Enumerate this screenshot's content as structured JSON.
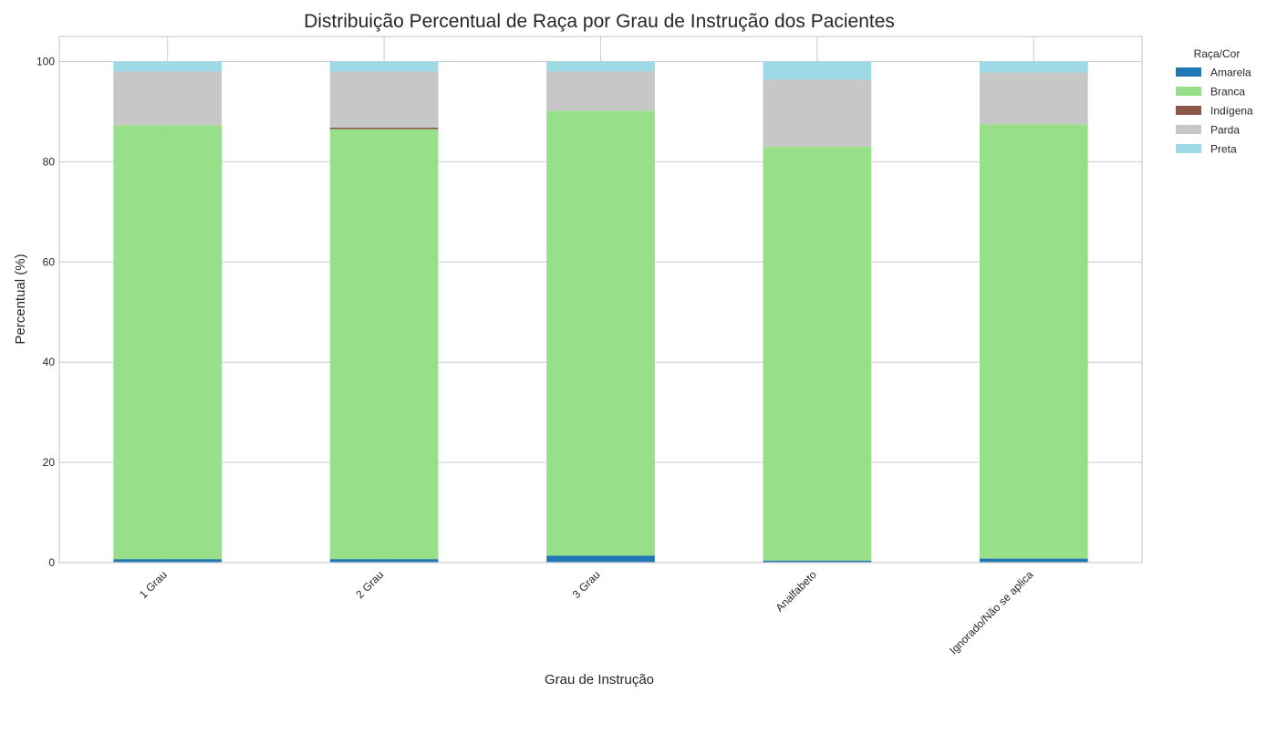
{
  "chart_data": {
    "type": "bar",
    "stacked": true,
    "title": "Distribuição Percentual de Raça por Grau de Instrução dos Pacientes",
    "xlabel": "Grau de Instrução",
    "ylabel": "Percentual (%)",
    "ylim": [
      0,
      105
    ],
    "yticks": [
      0,
      20,
      40,
      60,
      80,
      100
    ],
    "grid": true,
    "legend_title": "Raça/Cor",
    "legend_position": "right, outside top",
    "categories": [
      "1 Grau",
      "2 Grau",
      "3 Grau",
      "Analfabeto",
      "Ignorado/Não se aplica"
    ],
    "series": [
      {
        "name": "Amarela",
        "color": "#1f77b4",
        "values": [
          0.7,
          0.7,
          1.4,
          0.4,
          0.8
        ]
      },
      {
        "name": "Branca",
        "color": "#98df8a",
        "values": [
          86.6,
          85.8,
          88.8,
          82.6,
          86.7
        ]
      },
      {
        "name": "Indígena",
        "color": "#8c564b",
        "values": [
          0.0,
          0.3,
          0.0,
          0.0,
          0.0
        ]
      },
      {
        "name": "Parda",
        "color": "#c7c7c7",
        "values": [
          10.7,
          11.2,
          7.8,
          13.4,
          10.3
        ]
      },
      {
        "name": "Preta",
        "color": "#9edae5",
        "values": [
          2.0,
          2.0,
          2.0,
          3.6,
          2.2
        ]
      }
    ]
  }
}
